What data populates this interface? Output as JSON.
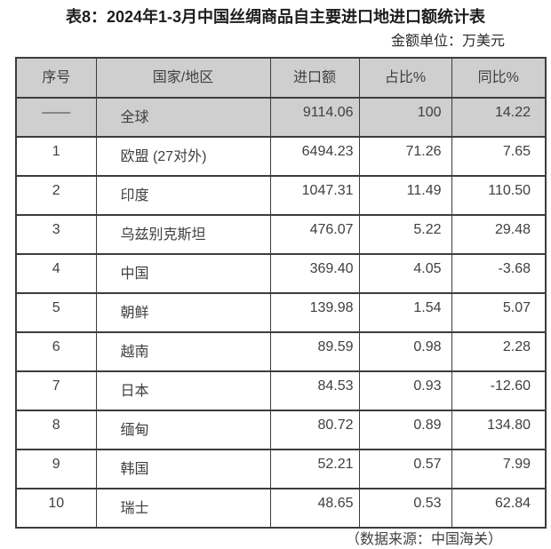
{
  "title": "表8：2024年1-3月中国丝绸商品自主要进口地进口额统计表",
  "unit_note": "金额单位：万美元",
  "source_note": "（数据来源：中国海关）",
  "colors": {
    "header_bg": "#cfcfcf",
    "border": "#3c3c3c",
    "text": "#3f3f3f"
  },
  "table": {
    "headers": [
      "序号",
      "国家/地区",
      "进口额",
      "占比%",
      "同比%"
    ],
    "rows": [
      {
        "no": "——",
        "region": "全球",
        "amount": "9114.06",
        "share": "100",
        "yoy": "14.22"
      },
      {
        "no": "1",
        "region": "欧盟 (27对外)",
        "amount": "6494.23",
        "share": "71.26",
        "yoy": "7.65"
      },
      {
        "no": "2",
        "region": "印度",
        "amount": "1047.31",
        "share": "11.49",
        "yoy": "110.50"
      },
      {
        "no": "3",
        "region": "乌兹别克斯坦",
        "amount": "476.07",
        "share": "5.22",
        "yoy": "29.48"
      },
      {
        "no": "4",
        "region": "中国",
        "amount": "369.40",
        "share": "4.05",
        "yoy": "-3.68"
      },
      {
        "no": "5",
        "region": "朝鲜",
        "amount": "139.98",
        "share": "1.54",
        "yoy": "5.07"
      },
      {
        "no": "6",
        "region": "越南",
        "amount": "89.59",
        "share": "0.98",
        "yoy": "2.28"
      },
      {
        "no": "7",
        "region": "日本",
        "amount": "84.53",
        "share": "0.93",
        "yoy": "-12.60"
      },
      {
        "no": "8",
        "region": "缅甸",
        "amount": "80.72",
        "share": "0.89",
        "yoy": "134.80"
      },
      {
        "no": "9",
        "region": "韩国",
        "amount": "52.21",
        "share": "0.57",
        "yoy": "7.99"
      },
      {
        "no": "10",
        "region": "瑞士",
        "amount": "48.65",
        "share": "0.53",
        "yoy": "62.84"
      }
    ]
  }
}
